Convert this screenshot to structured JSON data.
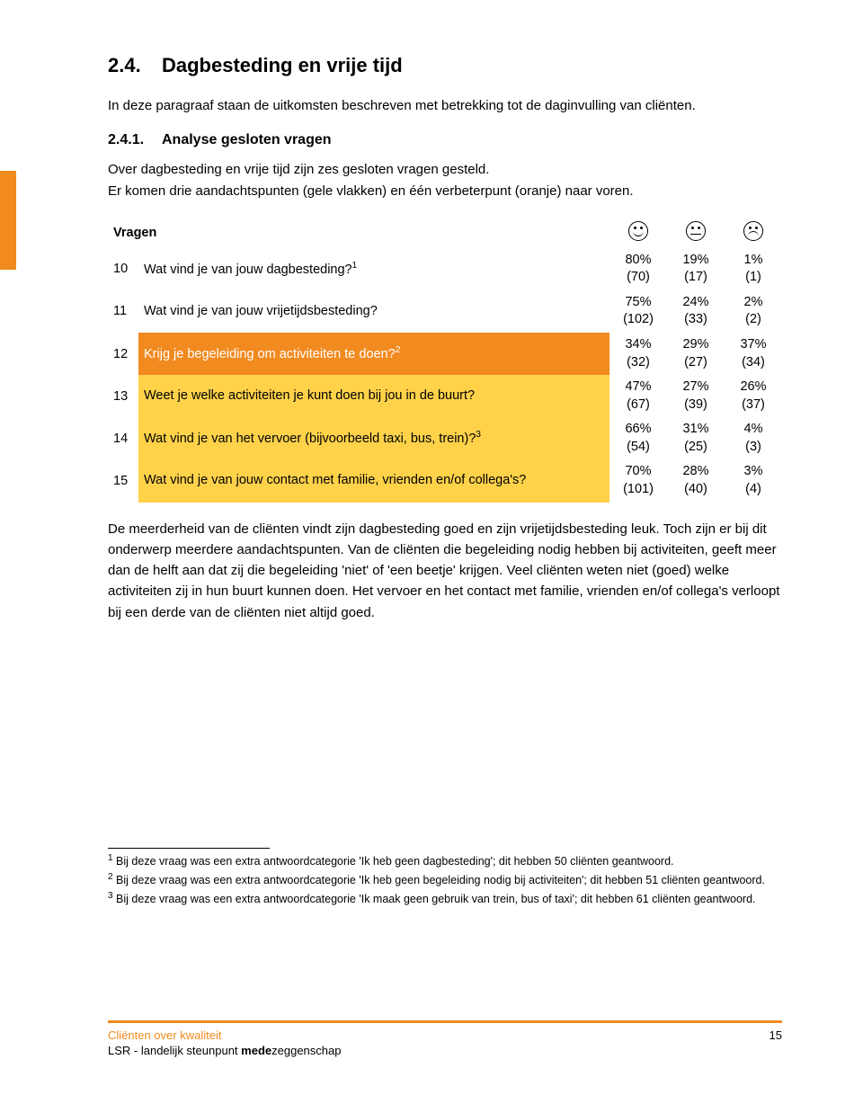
{
  "section": {
    "number": "2.4.",
    "title": "Dagbesteding en vrije tijd"
  },
  "intro": "In deze paragraaf staan de uitkomsten beschreven met betrekking tot de daginvulling van cliënten.",
  "subsection": {
    "number": "2.4.1.",
    "title": "Analyse gesloten vragen"
  },
  "subintro": "Over dagbesteding en vrije tijd zijn zes gesloten vragen gesteld.\nEr komen drie aandachtspunten (gele vlakken) en één verbeterpunt (oranje) naar voren.",
  "table": {
    "header": "Vragen",
    "rows": [
      {
        "n": "10",
        "q": "Wat vind je van jouw dagbesteding?",
        "sup": "1",
        "highlight": "none",
        "c1": {
          "p": "80%",
          "n": "(70)"
        },
        "c2": {
          "p": "19%",
          "n": "(17)"
        },
        "c3": {
          "p": "1%",
          "n": "(1)"
        }
      },
      {
        "n": "11",
        "q": "Wat vind je van jouw vrijetijdsbesteding?",
        "sup": "",
        "highlight": "none",
        "c1": {
          "p": "75%",
          "n": "(102)"
        },
        "c2": {
          "p": "24%",
          "n": "(33)"
        },
        "c3": {
          "p": "2%",
          "n": "(2)"
        }
      },
      {
        "n": "12",
        "q": "Krijg je begeleiding om activiteiten te doen?",
        "sup": "2",
        "highlight": "orange",
        "c1": {
          "p": "34%",
          "n": "(32)"
        },
        "c2": {
          "p": "29%",
          "n": "(27)"
        },
        "c3": {
          "p": "37%",
          "n": "(34)"
        }
      },
      {
        "n": "13",
        "q": "Weet je welke activiteiten je kunt doen bij jou in de buurt?",
        "sup": "",
        "highlight": "yellow",
        "c1": {
          "p": "47%",
          "n": "(67)"
        },
        "c2": {
          "p": "27%",
          "n": "(39)"
        },
        "c3": {
          "p": "26%",
          "n": "(37)"
        }
      },
      {
        "n": "14",
        "q": "Wat vind je van het vervoer (bijvoorbeeld taxi, bus, trein)?",
        "sup": "3",
        "highlight": "yellow",
        "c1": {
          "p": "66%",
          "n": "(54)"
        },
        "c2": {
          "p": "31%",
          "n": "(25)"
        },
        "c3": {
          "p": "4%",
          "n": "(3)"
        }
      },
      {
        "n": "15",
        "q": "Wat vind je van jouw contact met familie, vrienden en/of collega's?",
        "sup": "",
        "highlight": "yellow",
        "c1": {
          "p": "70%",
          "n": "(101)"
        },
        "c2": {
          "p": "28%",
          "n": "(40)"
        },
        "c3": {
          "p": "3%",
          "n": "(4)"
        }
      }
    ]
  },
  "analysis": "De meerderheid van de cliënten vindt zijn dagbesteding goed en zijn vrijetijdsbesteding leuk. Toch zijn er bij dit onderwerp meerdere aandachtspunten. Van de cliënten die begeleiding nodig hebben bij activiteiten, geeft meer dan de helft aan dat zij die begeleiding 'niet' of 'een beetje' krijgen. Veel cliënten weten niet (goed) welke activiteiten zij in hun buurt kunnen doen. Het vervoer en het contact met familie, vrienden en/of collega's verloopt bij een derde van de cliënten niet altijd goed.",
  "footnotes": {
    "f1": "Bij deze vraag was een extra antwoordcategorie 'Ik heb geen dagbesteding'; dit hebben 50 cliënten geantwoord.",
    "f2": "Bij deze vraag was een extra antwoordcategorie 'Ik heb geen begeleiding nodig bij activiteiten'; dit hebben 51 cliënten geantwoord.",
    "f3": "Bij deze vraag was een extra antwoordcategorie 'Ik maak geen gebruik van trein, bus of taxi'; dit hebben 61 cliënten geantwoord."
  },
  "footer": {
    "title": "Cliënten over kwaliteit",
    "sub_prefix": "LSR - landelijk steunpunt ",
    "sub_bold": "mede",
    "sub_suffix": "zeggenschap",
    "page": "15"
  },
  "colors": {
    "yellow": "#ffd24a",
    "orange": "#f18a1f"
  }
}
